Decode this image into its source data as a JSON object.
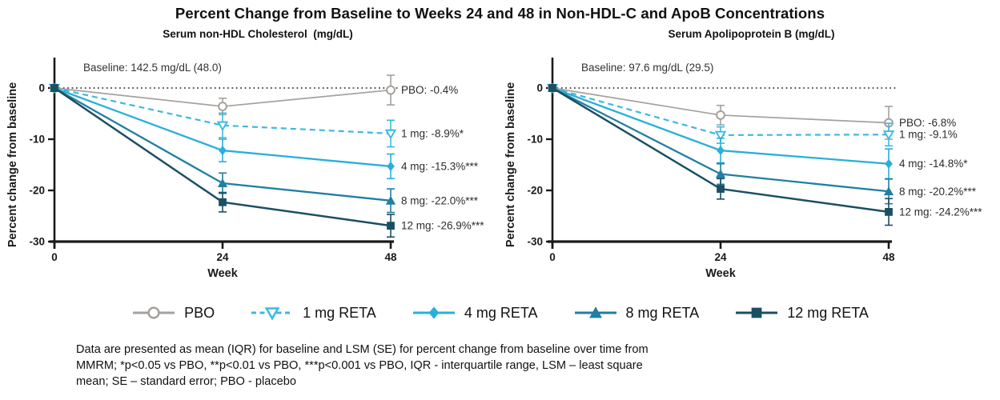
{
  "title": "Percent Change from Baseline to Weeks 24 and 48 in Non-HDL-C and ApoB Concentrations",
  "chart_data": [
    {
      "type": "line",
      "panel": "serum-non-hdl-cholesterol",
      "subtitle": "Serum non-HDL Cholesterol  (mg/dL)",
      "baseline_note": "Baseline: 142.5 mg/dL (48.0)",
      "xlabel": "Week",
      "ylabel": "Percent change from baseline",
      "x": [
        0,
        24,
        48
      ],
      "x_ticks": [
        0,
        24,
        48
      ],
      "y_ticks": [
        0,
        -10,
        -20,
        -30
      ],
      "ylim": [
        -30,
        3
      ],
      "grid": false,
      "zero_line": "dotted",
      "series": [
        {
          "name": "PBO",
          "end_label": "PBO: -0.4%",
          "y": [
            0,
            -3.6,
            -0.4
          ],
          "err": [
            0,
            1.6,
            2.9
          ],
          "color": "#a5a19c",
          "marker": "circle-open",
          "dash": false,
          "line_width": 1.7
        },
        {
          "name": "1 mg RETA",
          "end_label": "1 mg: -8.9%*",
          "y": [
            0,
            -7.3,
            -8.9
          ],
          "err": [
            0,
            2.4,
            2.6
          ],
          "color": "#3cb9e0",
          "marker": "triangle-down-open",
          "dash": true,
          "line_width": 2.2
        },
        {
          "name": "4 mg RETA",
          "end_label": "4 mg: -15.3%***",
          "y": [
            0,
            -12.2,
            -15.3
          ],
          "err": [
            0,
            2.2,
            2.4
          ],
          "color": "#29afd9",
          "marker": "diamond",
          "dash": false,
          "line_width": 2.3
        },
        {
          "name": "8 mg RETA",
          "end_label": "8 mg: -22.0%***",
          "y": [
            0,
            -18.6,
            -22.0
          ],
          "err": [
            0,
            2.0,
            2.3
          ],
          "color": "#217fa2",
          "marker": "triangle-up",
          "dash": false,
          "line_width": 2.3
        },
        {
          "name": "12 mg RETA",
          "end_label": "12 mg: -26.9%***",
          "y": [
            0,
            -22.3,
            -26.9
          ],
          "err": [
            0,
            1.9,
            2.2
          ],
          "color": "#1b4f63",
          "marker": "square",
          "dash": false,
          "line_width": 2.5
        }
      ]
    },
    {
      "type": "line",
      "panel": "serum-apolipoprotein-b",
      "subtitle": "Serum Apolipoprotein B (mg/dL)",
      "baseline_note": "Baseline: 97.6 mg/dL (29.5)",
      "xlabel": "Week",
      "ylabel": "Percent change from baseline",
      "x": [
        0,
        24,
        48
      ],
      "x_ticks": [
        0,
        24,
        48
      ],
      "y_ticks": [
        0,
        -10,
        -20,
        -30
      ],
      "ylim": [
        -30,
        3
      ],
      "grid": false,
      "zero_line": "dotted",
      "series": [
        {
          "name": "PBO",
          "end_label": "PBO: -6.8%",
          "y": [
            0,
            -5.3,
            -6.8
          ],
          "err": [
            0,
            1.9,
            3.2
          ],
          "color": "#a5a19c",
          "marker": "circle-open",
          "dash": false,
          "line_width": 1.7
        },
        {
          "name": "1 mg RETA",
          "end_label": "1 mg: -9.1%",
          "y": [
            0,
            -9.2,
            -9.1
          ],
          "err": [
            0,
            1.6,
            2.2
          ],
          "color": "#3cb9e0",
          "marker": "triangle-down-open",
          "dash": true,
          "line_width": 2.2
        },
        {
          "name": "4 mg RETA",
          "end_label": "4 mg: -14.8%*",
          "y": [
            0,
            -12.2,
            -14.8
          ],
          "err": [
            0,
            2.4,
            2.9
          ],
          "color": "#29afd9",
          "marker": "diamond",
          "dash": false,
          "line_width": 2.3
        },
        {
          "name": "8 mg RETA",
          "end_label": "8 mg: -20.2%***",
          "y": [
            0,
            -16.8,
            -20.2
          ],
          "err": [
            0,
            2.0,
            2.4
          ],
          "color": "#217fa2",
          "marker": "triangle-up",
          "dash": false,
          "line_width": 2.3
        },
        {
          "name": "12 mg RETA",
          "end_label": "12 mg: -24.2%***",
          "y": [
            0,
            -19.7,
            -24.2
          ],
          "err": [
            0,
            2.0,
            2.6
          ],
          "color": "#1b4f63",
          "marker": "square",
          "dash": false,
          "line_width": 2.5
        }
      ]
    }
  ],
  "legend": {
    "items": [
      {
        "label": "PBO",
        "color": "#a5a19c",
        "marker": "circle-open",
        "dash": false
      },
      {
        "label": "1 mg RETA",
        "color": "#3cb9e0",
        "marker": "triangle-down-open",
        "dash": true
      },
      {
        "label": "4 mg RETA",
        "color": "#29afd9",
        "marker": "diamond",
        "dash": false
      },
      {
        "label": "8 mg RETA",
        "color": "#217fa2",
        "marker": "triangle-up",
        "dash": false
      },
      {
        "label": "12 mg RETA",
        "color": "#1b4f63",
        "marker": "square",
        "dash": false
      }
    ]
  },
  "footnote_lines": [
    "Data are presented as mean (IQR) for baseline and LSM (SE) for percent change from baseline over time from",
    "MMRM; *p<0.05 vs PBO, **p<0.01 vs PBO, ***p<0.001 vs PBO, IQR - interquartile range, LSM – least square",
    "mean; SE – standard error; PBO - placebo"
  ],
  "colors": {
    "axis": "#1a1a1a",
    "pbo": "#a5a19c",
    "reta_1mg": "#3cb9e0",
    "reta_4mg": "#29afd9",
    "reta_8mg": "#217fa2",
    "reta_12mg": "#1b4f63"
  }
}
